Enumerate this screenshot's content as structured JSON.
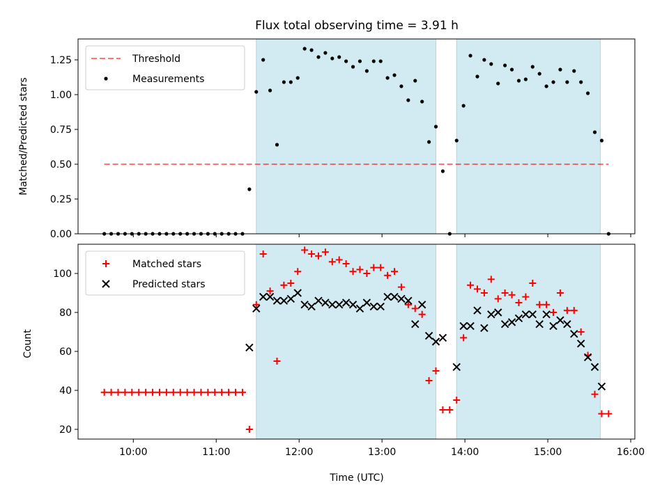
{
  "title": "Flux total observing time = 3.91 h",
  "colors": {
    "observing_band": "#add8e6",
    "threshold": "#ff0000",
    "matched": "#ff0000",
    "predicted": "#000000",
    "measurements": "#000000"
  },
  "chart_data": [
    {
      "type": "scatter",
      "title": "Flux total observing time = 3.91 h",
      "xlabel": "",
      "ylabel": "Matched/Predicted stars",
      "xlim": [
        "09:20",
        "16:03"
      ],
      "ylim": [
        0,
        1.4
      ],
      "yticks": [
        0.0,
        0.25,
        0.5,
        0.75,
        1.0,
        1.25
      ],
      "ytick_labels": [
        "0.00",
        "0.25",
        "0.50",
        "0.75",
        "1.00",
        "1.25"
      ],
      "xticks": [
        "10:00",
        "11:00",
        "12:00",
        "13:00",
        "14:00",
        "15:00",
        "16:00"
      ],
      "xtick_labels_visible": false,
      "legend_position": "top-left",
      "grid": false,
      "observing_windows": [
        [
          "11:29",
          "13:39"
        ],
        [
          "13:54",
          "15:38"
        ]
      ],
      "series": [
        {
          "name": "Threshold",
          "kind": "dashed-line",
          "x": [
            "09:39",
            "15:44"
          ],
          "y": [
            0.5,
            0.5
          ]
        },
        {
          "name": "Measurements",
          "kind": "points",
          "x": [
            "09:39",
            "09:44",
            "09:49",
            "09:54",
            "09:59",
            "10:04",
            "10:09",
            "10:14",
            "10:19",
            "10:24",
            "10:29",
            "10:34",
            "10:39",
            "10:44",
            "10:49",
            "10:54",
            "10:59",
            "11:04",
            "11:09",
            "11:14",
            "11:19",
            "11:24",
            "11:29",
            "11:34",
            "11:39",
            "11:44",
            "11:49",
            "11:54",
            "11:59",
            "12:04",
            "12:09",
            "12:14",
            "12:19",
            "12:24",
            "12:29",
            "12:34",
            "12:39",
            "12:44",
            "12:49",
            "12:54",
            "12:59",
            "13:04",
            "13:09",
            "13:14",
            "13:19",
            "13:24",
            "13:29",
            "13:34",
            "13:39",
            "13:44",
            "13:49",
            "13:54",
            "13:59",
            "14:04",
            "14:09",
            "14:14",
            "14:19",
            "14:24",
            "14:29",
            "14:34",
            "14:39",
            "14:44",
            "14:49",
            "14:54",
            "14:59",
            "15:04",
            "15:09",
            "15:14",
            "15:19",
            "15:24",
            "15:29",
            "15:34",
            "15:39",
            "15:44"
          ],
          "y": [
            0,
            0,
            0,
            0,
            0,
            0,
            0,
            0,
            0,
            0,
            0,
            0,
            0,
            0,
            0,
            0,
            0,
            0,
            0,
            0,
            0,
            0.32,
            1.02,
            1.25,
            1.03,
            0.64,
            1.09,
            1.09,
            1.12,
            1.33,
            1.32,
            1.27,
            1.3,
            1.26,
            1.27,
            1.24,
            1.2,
            1.24,
            1.17,
            1.24,
            1.24,
            1.12,
            1.14,
            1.06,
            0.96,
            1.1,
            0.95,
            0.66,
            0.77,
            0.45,
            0,
            0.67,
            0.92,
            1.28,
            1.13,
            1.25,
            1.22,
            1.08,
            1.21,
            1.18,
            1.1,
            1.11,
            1.2,
            1.15,
            1.06,
            1.09,
            1.18,
            1.09,
            1.17,
            1.09,
            1.01,
            0.73,
            0.67,
            0
          ]
        }
      ]
    },
    {
      "type": "scatter",
      "xlabel": "Time (UTC)",
      "ylabel": "Count",
      "xlim": [
        "09:20",
        "16:03"
      ],
      "ylim": [
        15,
        115
      ],
      "yticks": [
        20,
        40,
        60,
        80,
        100
      ],
      "ytick_labels": [
        "20",
        "40",
        "60",
        "80",
        "100"
      ],
      "xticks": [
        "10:00",
        "11:00",
        "12:00",
        "13:00",
        "14:00",
        "15:00",
        "16:00"
      ],
      "xtick_labels": [
        "10:00",
        "11:00",
        "12:00",
        "13:00",
        "14:00",
        "15:00",
        "16:00"
      ],
      "legend_position": "top-left",
      "grid": false,
      "observing_windows": [
        [
          "11:29",
          "13:39"
        ],
        [
          "13:54",
          "15:38"
        ]
      ],
      "series": [
        {
          "name": "Matched stars",
          "marker": "plus",
          "x": [
            "09:39",
            "09:44",
            "09:49",
            "09:54",
            "09:59",
            "10:04",
            "10:09",
            "10:14",
            "10:19",
            "10:24",
            "10:29",
            "10:34",
            "10:39",
            "10:44",
            "10:49",
            "10:54",
            "10:59",
            "11:04",
            "11:09",
            "11:14",
            "11:19",
            "11:24",
            "11:29",
            "11:34",
            "11:39",
            "11:44",
            "11:49",
            "11:54",
            "11:59",
            "12:04",
            "12:09",
            "12:14",
            "12:19",
            "12:24",
            "12:29",
            "12:34",
            "12:39",
            "12:44",
            "12:49",
            "12:54",
            "12:59",
            "13:04",
            "13:09",
            "13:14",
            "13:19",
            "13:24",
            "13:29",
            "13:34",
            "13:39",
            "13:44",
            "13:49",
            "13:54",
            "13:59",
            "14:04",
            "14:09",
            "14:14",
            "14:19",
            "14:24",
            "14:29",
            "14:34",
            "14:39",
            "14:44",
            "14:49",
            "14:54",
            "14:59",
            "15:04",
            "15:09",
            "15:14",
            "15:19",
            "15:24",
            "15:29",
            "15:34",
            "15:39",
            "15:44"
          ],
          "y": [
            39,
            39,
            39,
            39,
            39,
            39,
            39,
            39,
            39,
            39,
            39,
            39,
            39,
            39,
            39,
            39,
            39,
            39,
            39,
            39,
            39,
            20,
            84,
            110,
            91,
            55,
            94,
            95,
            101,
            112,
            110,
            109,
            111,
            106,
            107,
            105,
            101,
            102,
            100,
            103,
            103,
            99,
            101,
            93,
            84,
            82,
            79,
            45,
            50,
            30,
            30,
            35,
            67,
            94,
            92,
            90,
            97,
            87,
            90,
            89,
            85,
            88,
            95,
            84,
            84,
            80,
            90,
            81,
            81,
            70,
            58,
            38,
            28,
            28
          ]
        },
        {
          "name": "Predicted stars",
          "marker": "x",
          "x": [
            "11:24",
            "11:29",
            "11:34",
            "11:39",
            "11:44",
            "11:49",
            "11:54",
            "11:59",
            "12:04",
            "12:09",
            "12:14",
            "12:19",
            "12:24",
            "12:29",
            "12:34",
            "12:39",
            "12:44",
            "12:49",
            "12:54",
            "12:59",
            "13:04",
            "13:09",
            "13:14",
            "13:19",
            "13:24",
            "13:29",
            "13:34",
            "13:39",
            "13:44",
            "13:54",
            "13:59",
            "14:04",
            "14:09",
            "14:14",
            "14:19",
            "14:24",
            "14:29",
            "14:34",
            "14:39",
            "14:44",
            "14:49",
            "14:54",
            "14:59",
            "15:04",
            "15:09",
            "15:14",
            "15:19",
            "15:24",
            "15:29",
            "15:34",
            "15:39"
          ],
          "y": [
            62,
            82,
            88,
            88,
            86,
            86,
            87,
            90,
            84,
            83,
            86,
            85,
            84,
            84,
            85,
            84,
            82,
            85,
            83,
            83,
            88,
            88,
            87,
            86,
            74,
            84,
            68,
            65,
            67,
            52,
            73,
            73,
            81,
            72,
            79,
            80,
            74,
            75,
            77,
            79,
            79,
            74,
            79,
            73,
            76,
            74,
            69,
            64,
            57,
            52,
            42
          ]
        }
      ]
    }
  ]
}
